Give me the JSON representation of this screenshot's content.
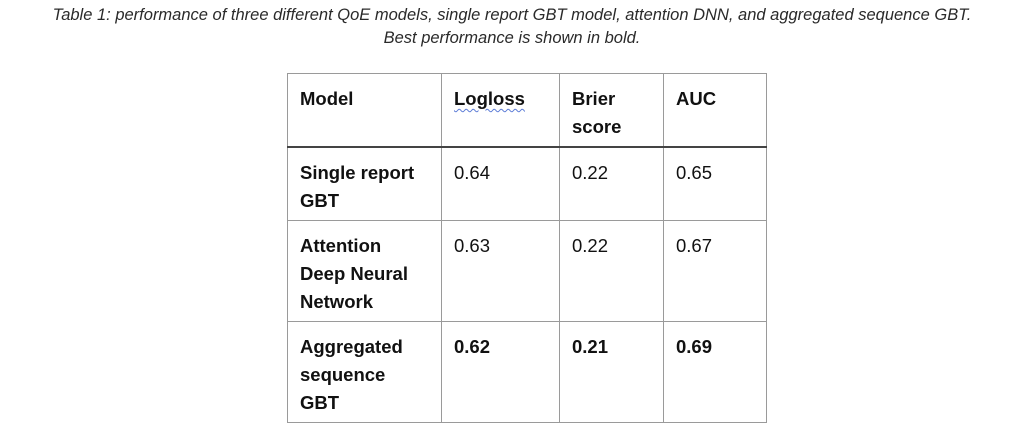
{
  "caption": {
    "line1": "Table 1: performance of three different QoE models, single report GBT model, attention DNN, and aggregated sequence GBT.",
    "line2": "Best performance is shown in bold."
  },
  "table": {
    "headers": {
      "model": "Model",
      "logloss": "Logloss",
      "brier": "Brier score",
      "auc": "AUC"
    },
    "rows": [
      {
        "model": "Single report GBT",
        "logloss": "0.64",
        "brier": "0.22",
        "auc": "0.65",
        "best": false
      },
      {
        "model": "Attention Deep Neural Network",
        "logloss": "0.63",
        "brier": "0.22",
        "auc": "0.67",
        "best": false
      },
      {
        "model": "Aggregated sequence GBT",
        "logloss": "0.62",
        "brier": "0.21",
        "auc": "0.69",
        "best": true
      }
    ]
  }
}
